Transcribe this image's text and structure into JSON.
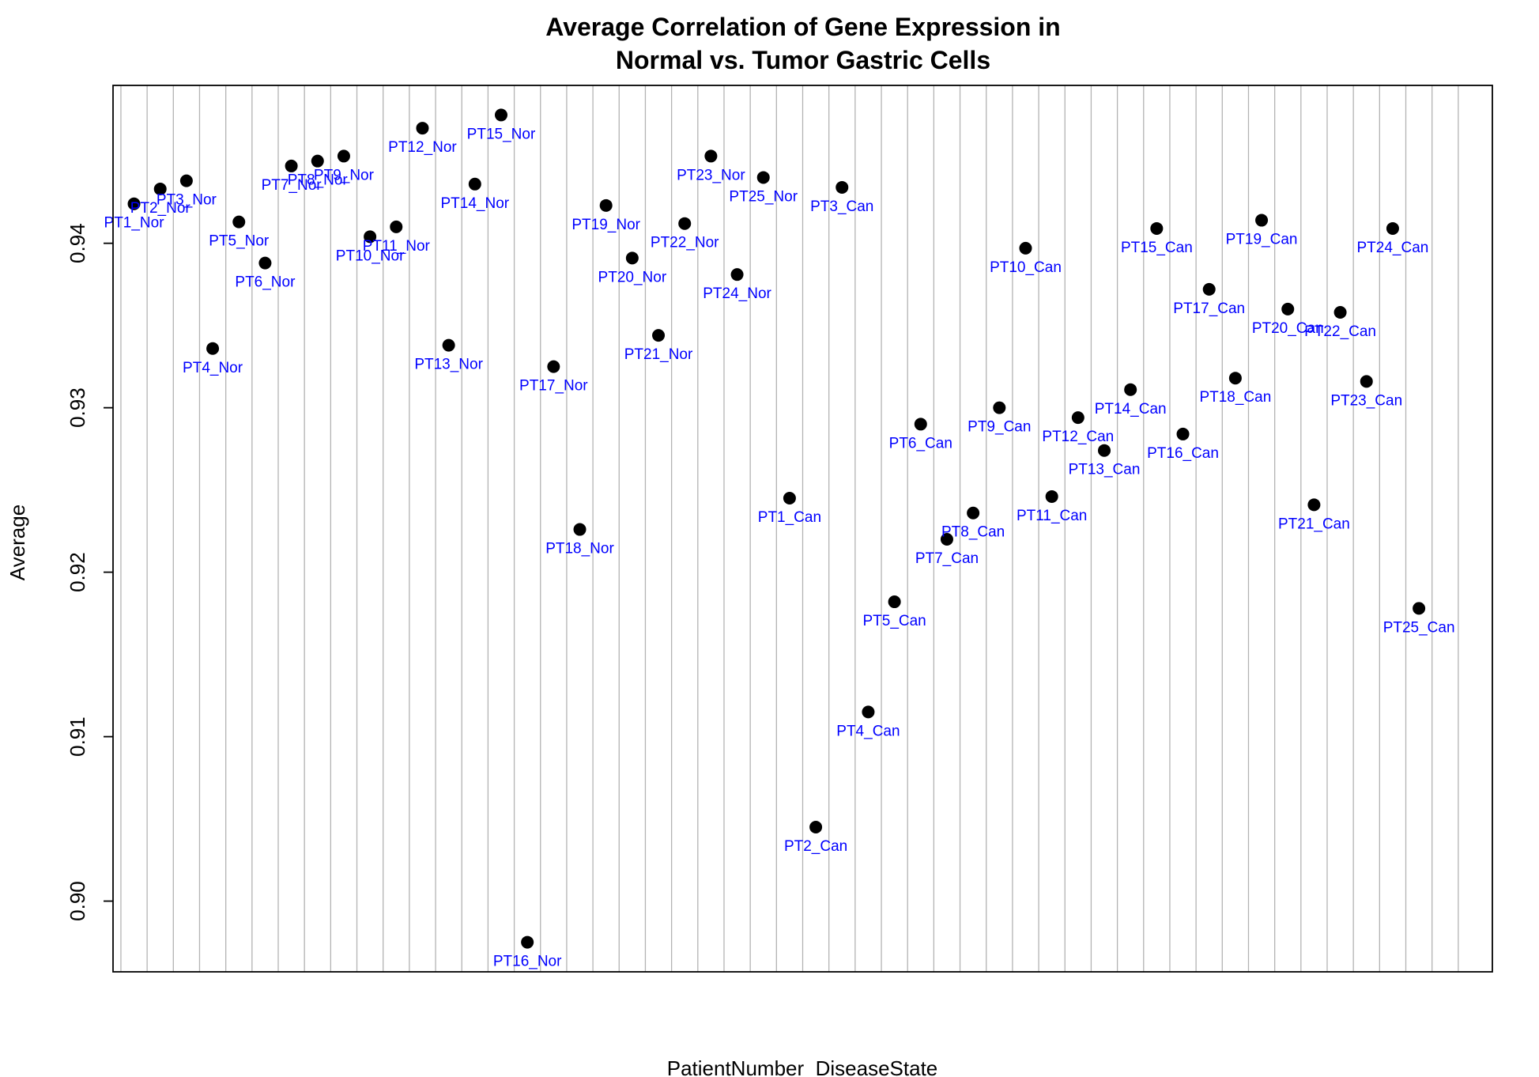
{
  "chart_data": {
    "type": "scatter",
    "title": [
      "Average Correlation of Gene Expression in",
      "Normal vs. Tumor Gastric Cells"
    ],
    "xlabel": "PatientNumber_DiseaseState",
    "ylabel": "Average",
    "ylim": [
      0.8957,
      0.9496
    ],
    "yticks": [
      0.9,
      0.91,
      0.92,
      0.93,
      0.94
    ],
    "ytick_labels": [
      "0.90",
      "0.91",
      "0.92",
      "0.93",
      "0.94"
    ],
    "grid": "vertical",
    "point_color": "#000000",
    "label_color": "#0000ff",
    "points": [
      {
        "label": "PT1_Nor",
        "y": 0.9424
      },
      {
        "label": "PT2_Nor",
        "y": 0.9433
      },
      {
        "label": "PT3_Nor",
        "y": 0.9438
      },
      {
        "label": "PT4_Nor",
        "y": 0.9336
      },
      {
        "label": "PT5_Nor",
        "y": 0.9413
      },
      {
        "label": "PT6_Nor",
        "y": 0.9388
      },
      {
        "label": "PT7_Nor",
        "y": 0.9447
      },
      {
        "label": "PT8_Nor",
        "y": 0.945
      },
      {
        "label": "PT9_Nor",
        "y": 0.9453
      },
      {
        "label": "PT10_Nor",
        "y": 0.9404
      },
      {
        "label": "PT11_Nor",
        "y": 0.941
      },
      {
        "label": "PT12_Nor",
        "y": 0.947
      },
      {
        "label": "PT13_Nor",
        "y": 0.9338
      },
      {
        "label": "PT14_Nor",
        "y": 0.9436
      },
      {
        "label": "PT15_Nor",
        "y": 0.9478
      },
      {
        "label": "PT16_Nor",
        "y": 0.8975
      },
      {
        "label": "PT17_Nor",
        "y": 0.9325
      },
      {
        "label": "PT18_Nor",
        "y": 0.9226
      },
      {
        "label": "PT19_Nor",
        "y": 0.9423
      },
      {
        "label": "PT20_Nor",
        "y": 0.9391
      },
      {
        "label": "PT21_Nor",
        "y": 0.9344
      },
      {
        "label": "PT22_Nor",
        "y": 0.9412
      },
      {
        "label": "PT23_Nor",
        "y": 0.9453
      },
      {
        "label": "PT24_Nor",
        "y": 0.9381
      },
      {
        "label": "PT25_Nor",
        "y": 0.944
      },
      {
        "label": "PT1_Can",
        "y": 0.9245
      },
      {
        "label": "PT2_Can",
        "y": 0.9045
      },
      {
        "label": "PT3_Can",
        "y": 0.9434
      },
      {
        "label": "PT4_Can",
        "y": 0.9115
      },
      {
        "label": "PT5_Can",
        "y": 0.9182
      },
      {
        "label": "PT6_Can",
        "y": 0.929
      },
      {
        "label": "PT7_Can",
        "y": 0.922
      },
      {
        "label": "PT8_Can",
        "y": 0.9236
      },
      {
        "label": "PT9_Can",
        "y": 0.93
      },
      {
        "label": "PT10_Can",
        "y": 0.9397
      },
      {
        "label": "PT11_Can",
        "y": 0.9246
      },
      {
        "label": "PT12_Can",
        "y": 0.9294
      },
      {
        "label": "PT13_Can",
        "y": 0.9274
      },
      {
        "label": "PT14_Can",
        "y": 0.9311
      },
      {
        "label": "PT15_Can",
        "y": 0.9409
      },
      {
        "label": "PT16_Can",
        "y": 0.9284
      },
      {
        "label": "PT17_Can",
        "y": 0.9372
      },
      {
        "label": "PT18_Can",
        "y": 0.9318
      },
      {
        "label": "PT19_Can",
        "y": 0.9414
      },
      {
        "label": "PT20_Can",
        "y": 0.936
      },
      {
        "label": "PT21_Can",
        "y": 0.9241
      },
      {
        "label": "PT22_Can",
        "y": 0.9358
      },
      {
        "label": "PT23_Can",
        "y": 0.9316
      },
      {
        "label": "PT24_Can",
        "y": 0.9409
      },
      {
        "label": "PT25_Can",
        "y": 0.9178
      }
    ]
  }
}
